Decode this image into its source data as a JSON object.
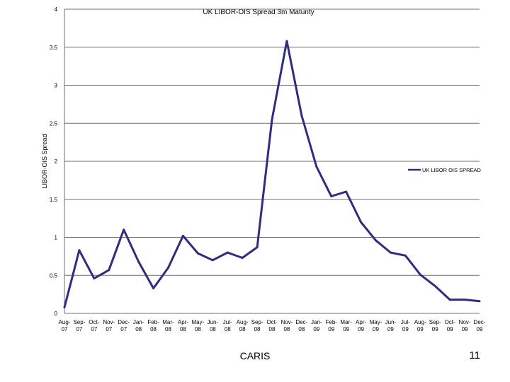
{
  "chart_data": {
    "type": "line",
    "title": "UK LIBOR-OIS Spread 3m Maturity",
    "xlabel": "",
    "ylabel": "LIBOR-OIS Spread",
    "ylim": [
      0,
      4
    ],
    "yticks": [
      "0",
      "0.5",
      "1",
      "1.5",
      "2",
      "2.5",
      "3",
      "3.5",
      "4"
    ],
    "grid": true,
    "legend_position": "right",
    "line_color": "#2e2d7e",
    "categories": [
      "Aug-07",
      "Sep-07",
      "Oct-07",
      "Nov-07",
      "Dec-07",
      "Jan-08",
      "Feb-08",
      "Mar-08",
      "Apr-08",
      "May-08",
      "Jun-08",
      "Jul-08",
      "Aug-08",
      "Sep-08",
      "Oct-08",
      "Nov-08",
      "Dec-08",
      "Jan-09",
      "Feb-09",
      "Mar-09",
      "Apr-09",
      "May-09",
      "Jun-09",
      "Jul-09",
      "Aug-09",
      "Sep-09",
      "Oct-09",
      "Nov-09",
      "Dec-09"
    ],
    "category_lines": [
      [
        "Aug-",
        "07"
      ],
      [
        "Sep-",
        "07"
      ],
      [
        "Oct-",
        "07"
      ],
      [
        "Nov-",
        "07"
      ],
      [
        "Dec-",
        "07"
      ],
      [
        "Jan-",
        "08"
      ],
      [
        "Feb-",
        "08"
      ],
      [
        "Mar-",
        "08"
      ],
      [
        "Apr-",
        "08"
      ],
      [
        "May-",
        "08"
      ],
      [
        "Jun-",
        "08"
      ],
      [
        "Jul-",
        "08"
      ],
      [
        "Aug-",
        "08"
      ],
      [
        "Sep-",
        "08"
      ],
      [
        "Oct-",
        "08"
      ],
      [
        "Nov-",
        "08"
      ],
      [
        "Dec-",
        "08"
      ],
      [
        "Jan-",
        "09"
      ],
      [
        "Feb-",
        "09"
      ],
      [
        "Mar-",
        "09"
      ],
      [
        "Apr-",
        "09"
      ],
      [
        "May-",
        "09"
      ],
      [
        "Jun-",
        "09"
      ],
      [
        "Jul-",
        "09"
      ],
      [
        "Aug-",
        "09"
      ],
      [
        "Sep-",
        "09"
      ],
      [
        "Oct-",
        "09"
      ],
      [
        "Nov-",
        "09"
      ],
      [
        "Dec-",
        "09"
      ]
    ],
    "series": [
      {
        "name": "UK LIBOR OIS SPREAD",
        "values": [
          0.08,
          0.83,
          0.46,
          0.57,
          1.1,
          0.68,
          0.33,
          0.6,
          1.02,
          0.79,
          0.7,
          0.8,
          0.73,
          0.87,
          2.55,
          3.58,
          2.6,
          1.93,
          1.54,
          1.6,
          1.2,
          0.96,
          0.8,
          0.76,
          0.51,
          0.36,
          0.18,
          0.18,
          0.16
        ]
      }
    ]
  },
  "footer": {
    "label": "CARIS",
    "page_number": "11"
  }
}
